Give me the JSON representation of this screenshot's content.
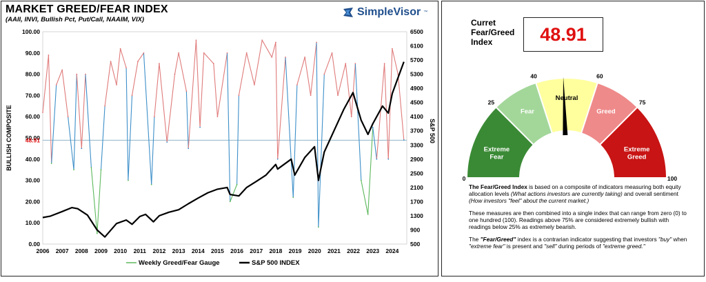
{
  "chart": {
    "title": "MARKET GREED/FEAR INDEX",
    "subtitle": "(AAII, INVI, Bullish Pct, Put/Call, NAAIM, VIX)",
    "y_left_label": "BULLISH COMPOSITE",
    "y_right_label": "S&P 500",
    "current_marker": "48.91",
    "left_ticks": [
      "0.00",
      "10.00",
      "20.00",
      "30.00",
      "40.00",
      "50.00",
      "60.00",
      "70.00",
      "80.00",
      "90.00",
      "100.00"
    ],
    "right_ticks": [
      "500",
      "900",
      "1300",
      "1700",
      "2100",
      "2500",
      "2900",
      "3300",
      "3700",
      "4100",
      "4500",
      "4900",
      "5300",
      "5700",
      "6100",
      "6500"
    ],
    "x_ticks": [
      "2006",
      "2007",
      "2008",
      "2009",
      "2010",
      "2011",
      "2012",
      "2013",
      "2014",
      "2015",
      "2016",
      "2017",
      "2018",
      "2019",
      "2020",
      "2021",
      "2022",
      "2023",
      "2024"
    ],
    "legend": {
      "gauge": "Weekly Greed/Fear Gauge",
      "sp500": "S&P 500 INDEX"
    }
  },
  "brand": {
    "name": "SimpleVisor",
    "tm": "™"
  },
  "current": {
    "label": "Curret Fear/Greed Index",
    "value": "48.91"
  },
  "gauge": {
    "segments": [
      {
        "label": "Extreme Fear",
        "from": 0,
        "to": 25,
        "color": "#3a8a35"
      },
      {
        "label": "Fear",
        "from": 25,
        "to": 40,
        "color": "#a3d79a"
      },
      {
        "label": "Neutral",
        "from": 40,
        "to": 60,
        "color": "#ffff9e"
      },
      {
        "label": "Greed",
        "from": 60,
        "to": 75,
        "color": "#ef8a8a"
      },
      {
        "label": "Extreme Greed",
        "from": 75,
        "to": 100,
        "color": "#c81414"
      }
    ],
    "tick_labels": [
      "0",
      "25",
      "40",
      "60",
      "75",
      "100"
    ],
    "needle_value": 48.91
  },
  "description": {
    "p1_bold": "The Fear/Greed Index",
    "p1_a": " is based on a composite of indicators measuring both equity allocation levels ",
    "p1_i": "(What actions investors are currently taking)",
    "p1_b": " and overall sentiment ",
    "p1_i2": "(How investors \"feel\" about the current market.)",
    "p2": "These measures are then combined into a single index that can range from zero (0) to one hundred (100). Readings above 75% are considered extremely bullish with readings below 25% as extremely bearish.",
    "p3_a": "The ",
    "p3_b": "\"Fear/Greed\"",
    "p3_c": " index is a contrarian indicator suggesting that investors ",
    "p3_d": "\"buy\"",
    "p3_e": " when ",
    "p3_f": "\"extreme fear\"",
    "p3_g": " is present and ",
    "p3_h": "\"sell\"",
    "p3_i": " during periods of ",
    "p3_j": "\"extreme greed.\""
  },
  "chart_data": {
    "type": "line",
    "title": "MARKET GREED/FEAR INDEX",
    "xlabel": "",
    "ylabel": "BULLISH COMPOSITE",
    "y2label": "S&P 500",
    "xlim": [
      2006,
      2024.75
    ],
    "ylim": [
      0,
      100
    ],
    "y2lim": [
      500,
      6500
    ],
    "reference_value": 48.91,
    "series": [
      {
        "name": "Weekly Greed/Fear Gauge",
        "axis": "left",
        "x": [
          2006.0,
          2006.3,
          2006.45,
          2006.7,
          2007.0,
          2007.3,
          2007.6,
          2007.75,
          2008.0,
          2008.2,
          2008.5,
          2008.8,
          2009.0,
          2009.2,
          2009.5,
          2009.8,
          2010.0,
          2010.3,
          2010.4,
          2010.6,
          2010.9,
          2011.2,
          2011.6,
          2011.75,
          2012.0,
          2012.4,
          2012.8,
          2013.0,
          2013.4,
          2013.5,
          2013.9,
          2014.1,
          2014.3,
          2014.8,
          2015.0,
          2015.5,
          2015.65,
          2016.0,
          2016.1,
          2016.5,
          2016.9,
          2017.3,
          2017.8,
          2018.0,
          2018.1,
          2018.5,
          2018.9,
          2019.1,
          2019.5,
          2019.8,
          2020.1,
          2020.2,
          2020.5,
          2020.9,
          2021.2,
          2021.6,
          2021.9,
          2022.1,
          2022.4,
          2022.75,
          2023.0,
          2023.2,
          2023.6,
          2023.8,
          2024.0,
          2024.3,
          2024.6
        ],
        "y": [
          62,
          89,
          38,
          75,
          82,
          60,
          35,
          80,
          45,
          80,
          36,
          5,
          35,
          65,
          86,
          75,
          92,
          83,
          30,
          70,
          86,
          90,
          28,
          60,
          85,
          48,
          80,
          90,
          72,
          45,
          96,
          55,
          90,
          85,
          60,
          90,
          20,
          28,
          70,
          90,
          75,
          96,
          88,
          95,
          40,
          88,
          22,
          75,
          88,
          70,
          95,
          8,
          80,
          90,
          70,
          85,
          60,
          85,
          30,
          14,
          55,
          40,
          85,
          40,
          92,
          80,
          49
        ]
      },
      {
        "name": "S&P 500 INDEX",
        "axis": "right",
        "x": [
          2006.0,
          2006.4,
          2007.0,
          2007.5,
          2007.8,
          2008.3,
          2008.8,
          2009.2,
          2009.8,
          2010.3,
          2010.6,
          2011.0,
          2011.3,
          2011.7,
          2012.0,
          2012.5,
          2013.0,
          2013.5,
          2014.0,
          2014.5,
          2015.0,
          2015.5,
          2015.65,
          2016.1,
          2016.5,
          2017.0,
          2017.5,
          2018.0,
          2018.1,
          2018.8,
          2018.98,
          2019.5,
          2020.0,
          2020.2,
          2020.5,
          2021.0,
          2021.5,
          2021.98,
          2022.4,
          2022.75,
          2023.0,
          2023.5,
          2023.8,
          2024.0,
          2024.3,
          2024.6
        ],
        "y": [
          1250,
          1290,
          1420,
          1530,
          1500,
          1320,
          900,
          700,
          1080,
          1180,
          1060,
          1280,
          1340,
          1130,
          1300,
          1400,
          1470,
          1640,
          1800,
          1950,
          2050,
          2100,
          1900,
          1860,
          2100,
          2270,
          2450,
          2750,
          2620,
          2900,
          2450,
          2950,
          3250,
          2300,
          3100,
          3700,
          4300,
          4780,
          4000,
          3600,
          3900,
          4400,
          4200,
          4750,
          5200,
          5650
        ]
      }
    ]
  }
}
